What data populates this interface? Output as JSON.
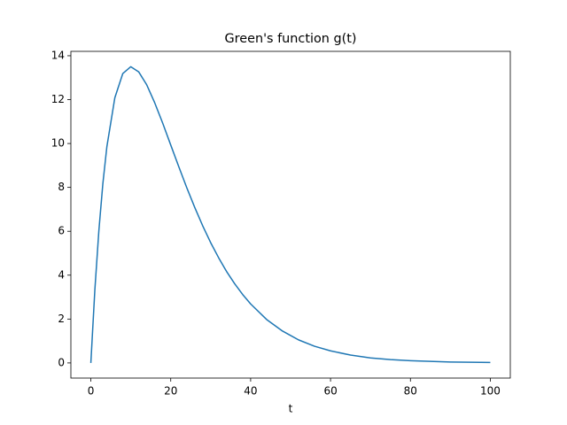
{
  "chart_data": {
    "type": "line",
    "title": "Green's function g(t)",
    "x_label": "t",
    "x": [
      0,
      1,
      2,
      3,
      4,
      6,
      8,
      10,
      12,
      14,
      16,
      18,
      20,
      22,
      24,
      26,
      28,
      30,
      32,
      34,
      36,
      38,
      40,
      44,
      48,
      52,
      56,
      60,
      65,
      70,
      75,
      80,
      90,
      100
    ],
    "series": [
      {
        "name": "g(t)",
        "color": "#1f77b4",
        "values": [
          0,
          3.32,
          6.01,
          8.16,
          9.84,
          12.08,
          13.19,
          13.5,
          13.26,
          12.67,
          11.85,
          10.92,
          9.93,
          8.95,
          7.99,
          7.09,
          6.25,
          5.48,
          4.79,
          4.16,
          3.61,
          3.12,
          2.69,
          1.98,
          1.45,
          1.05,
          0.76,
          0.55,
          0.36,
          0.23,
          0.15,
          0.1,
          0.04,
          0.02
        ]
      }
    ],
    "xlim": [
      -5,
      105
    ],
    "xticks": [
      0,
      20,
      40,
      60,
      80,
      100
    ],
    "ylim": [
      -0.69,
      14.2
    ],
    "yticks": [
      0,
      2,
      4,
      6,
      8,
      10,
      12,
      14
    ]
  }
}
